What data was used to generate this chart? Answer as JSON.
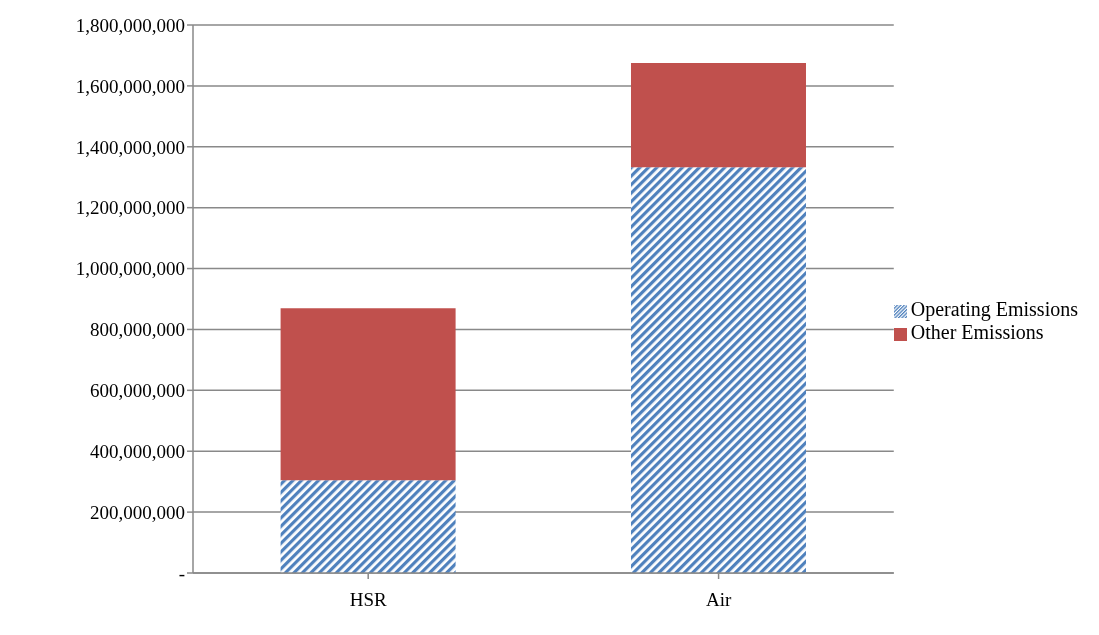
{
  "chart_data": {
    "type": "bar",
    "stacked": true,
    "categories": [
      "HSR",
      "Air"
    ],
    "series": [
      {
        "name": "Operating Emissions",
        "color": "#4f81bd",
        "values": [
          305000000,
          1333000000
        ]
      },
      {
        "name": "Other Emissions",
        "color": "#c0504d",
        "values": [
          565000000,
          342000000
        ]
      }
    ],
    "ylim": [
      0,
      1800000000
    ],
    "yticks": [
      {
        "value": 0,
        "label": "-"
      },
      {
        "value": 200000000,
        "label": "200,000,000"
      },
      {
        "value": 400000000,
        "label": "400,000,000"
      },
      {
        "value": 600000000,
        "label": "600,000,000"
      },
      {
        "value": 800000000,
        "label": "800,000,000"
      },
      {
        "value": 1000000000,
        "label": "1,000,000,000"
      },
      {
        "value": 1200000000,
        "label": "1,200,000,000"
      },
      {
        "value": 1400000000,
        "label": "1,400,000,000"
      },
      {
        "value": 1600000000,
        "label": "1,600,000,000"
      },
      {
        "value": 1800000000,
        "label": "1,800,000,000"
      }
    ],
    "grid": "y",
    "legend": "right"
  }
}
